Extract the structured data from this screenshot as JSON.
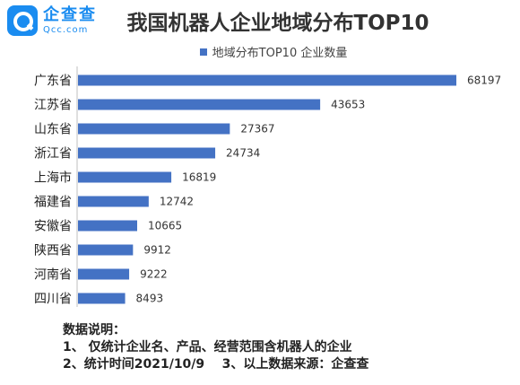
{
  "brand": {
    "name_cn": "企查查",
    "name_en": "Qcc.com"
  },
  "colors": {
    "bar": "#4472c4",
    "brand": "#1a8cf0"
  },
  "chart_data": {
    "type": "bar",
    "orientation": "horizontal",
    "title": "我国机器人企业地域分布TOP10",
    "legend_position": "top",
    "grid": false,
    "categories": [
      "广东省",
      "江苏省",
      "山东省",
      "浙江省",
      "上海市",
      "福建省",
      "安徽省",
      "陕西省",
      "河南省",
      "四川省"
    ],
    "series": [
      {
        "name": "地域分布TOP10 企业数量",
        "values": [
          68197,
          43653,
          27367,
          24734,
          16819,
          12742,
          10665,
          9912,
          9222,
          8493
        ]
      }
    ],
    "xlim": [
      0,
      68197
    ]
  },
  "notes": {
    "heading": "数据说明：",
    "line1": "1、 仅统计企业名、产品、经营范围含机器人的企业",
    "line2": "2、统计时间2021/10/9    3、以上数据来源：企查查"
  }
}
